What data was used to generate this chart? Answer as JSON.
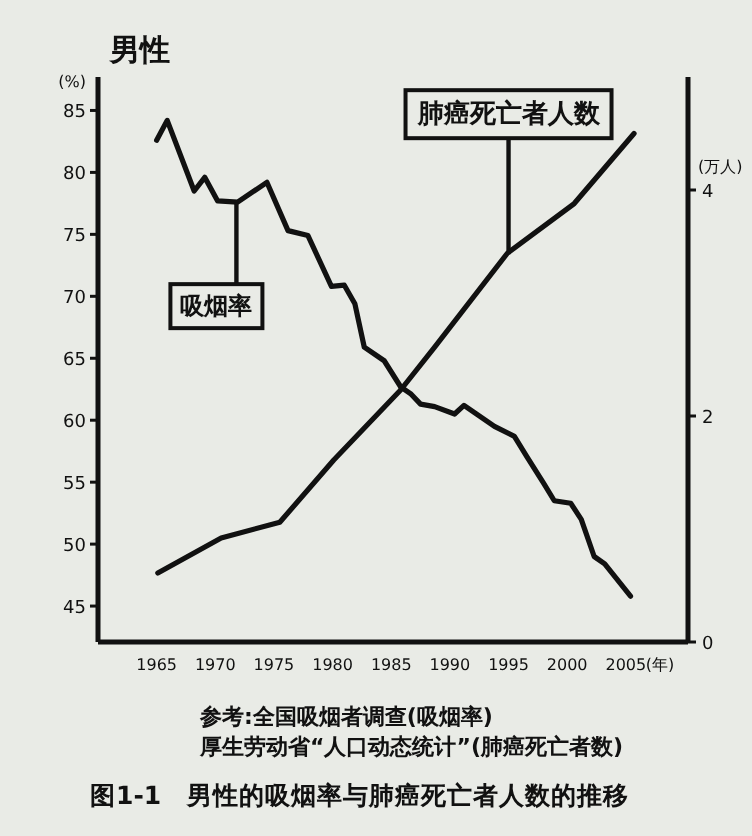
{
  "chart_data": {
    "type": "line",
    "title": "男性",
    "ylabel": "(%)",
    "y2label": "(万人)",
    "xlabel": "(年)",
    "xlim": [
      1960,
      2010.3
    ],
    "xticks": [
      1965,
      1970,
      1975,
      1980,
      1985,
      1990,
      1995,
      2000,
      2005
    ],
    "ylim": [
      42.1,
      87.7
    ],
    "yticks": [
      45,
      50,
      55,
      60,
      65,
      70,
      75,
      80,
      85
    ],
    "y2lim": [
      0,
      5
    ],
    "y2ticks": [
      0,
      2,
      4
    ],
    "grid": false,
    "marker": "none",
    "line_style": "solid",
    "series": [
      {
        "color": "#111111",
        "x": [
          1965,
          1965.9,
          1968.2,
          1969.1,
          1970.2,
          1971.9,
          1974.4,
          1976.2,
          1977.9,
          1979.9,
          1981,
          1981.9,
          1982.7,
          1984.4,
          1985.8,
          1986.7,
          1987.5,
          1988.7,
          1990.4,
          1991.2,
          1993.8,
          1995.5,
          1996.6,
          1998,
          1998.9,
          2000.3,
          2001.2,
          2002.3,
          2003.2,
          2005.4
        ],
        "values": [
          82.6,
          84.2,
          78.5,
          79.6,
          77.7,
          77.6,
          79.2,
          75.3,
          74.9,
          70.8,
          70.9,
          69.4,
          65.9,
          64.8,
          62.7,
          62.1,
          61.3,
          61.1,
          60.5,
          61.2,
          59.5,
          58.7,
          57,
          54.9,
          53.5,
          53.3,
          52,
          49,
          48.4,
          45.8
        ]
      },
      {
        "color": "#111111",
        "axis": "y2",
        "x": [
          1965.1,
          1970.5,
          1975.5,
          1980.1,
          1985.8,
          1988.7,
          1994.9,
          2000.6,
          2005.7
        ],
        "values": [
          0.61,
          0.92,
          1.06,
          1.61,
          2.23,
          2.61,
          3.44,
          3.88,
          4.5
        ]
      }
    ],
    "annotations": [
      {
        "text": "吸烟率",
        "x": 1971.8,
        "y": 77.6
      },
      {
        "text": "肺癌死亡者人数",
        "x": 1995,
        "y": 73.4
      },
      "参考:全国吸烟者调查(吸烟率)",
      "厚生劳动省“人口动态统计”(肺癌死亡者数)",
      "图1-1　男性的吸烟率与肺癌死亡者人数的推移"
    ]
  }
}
